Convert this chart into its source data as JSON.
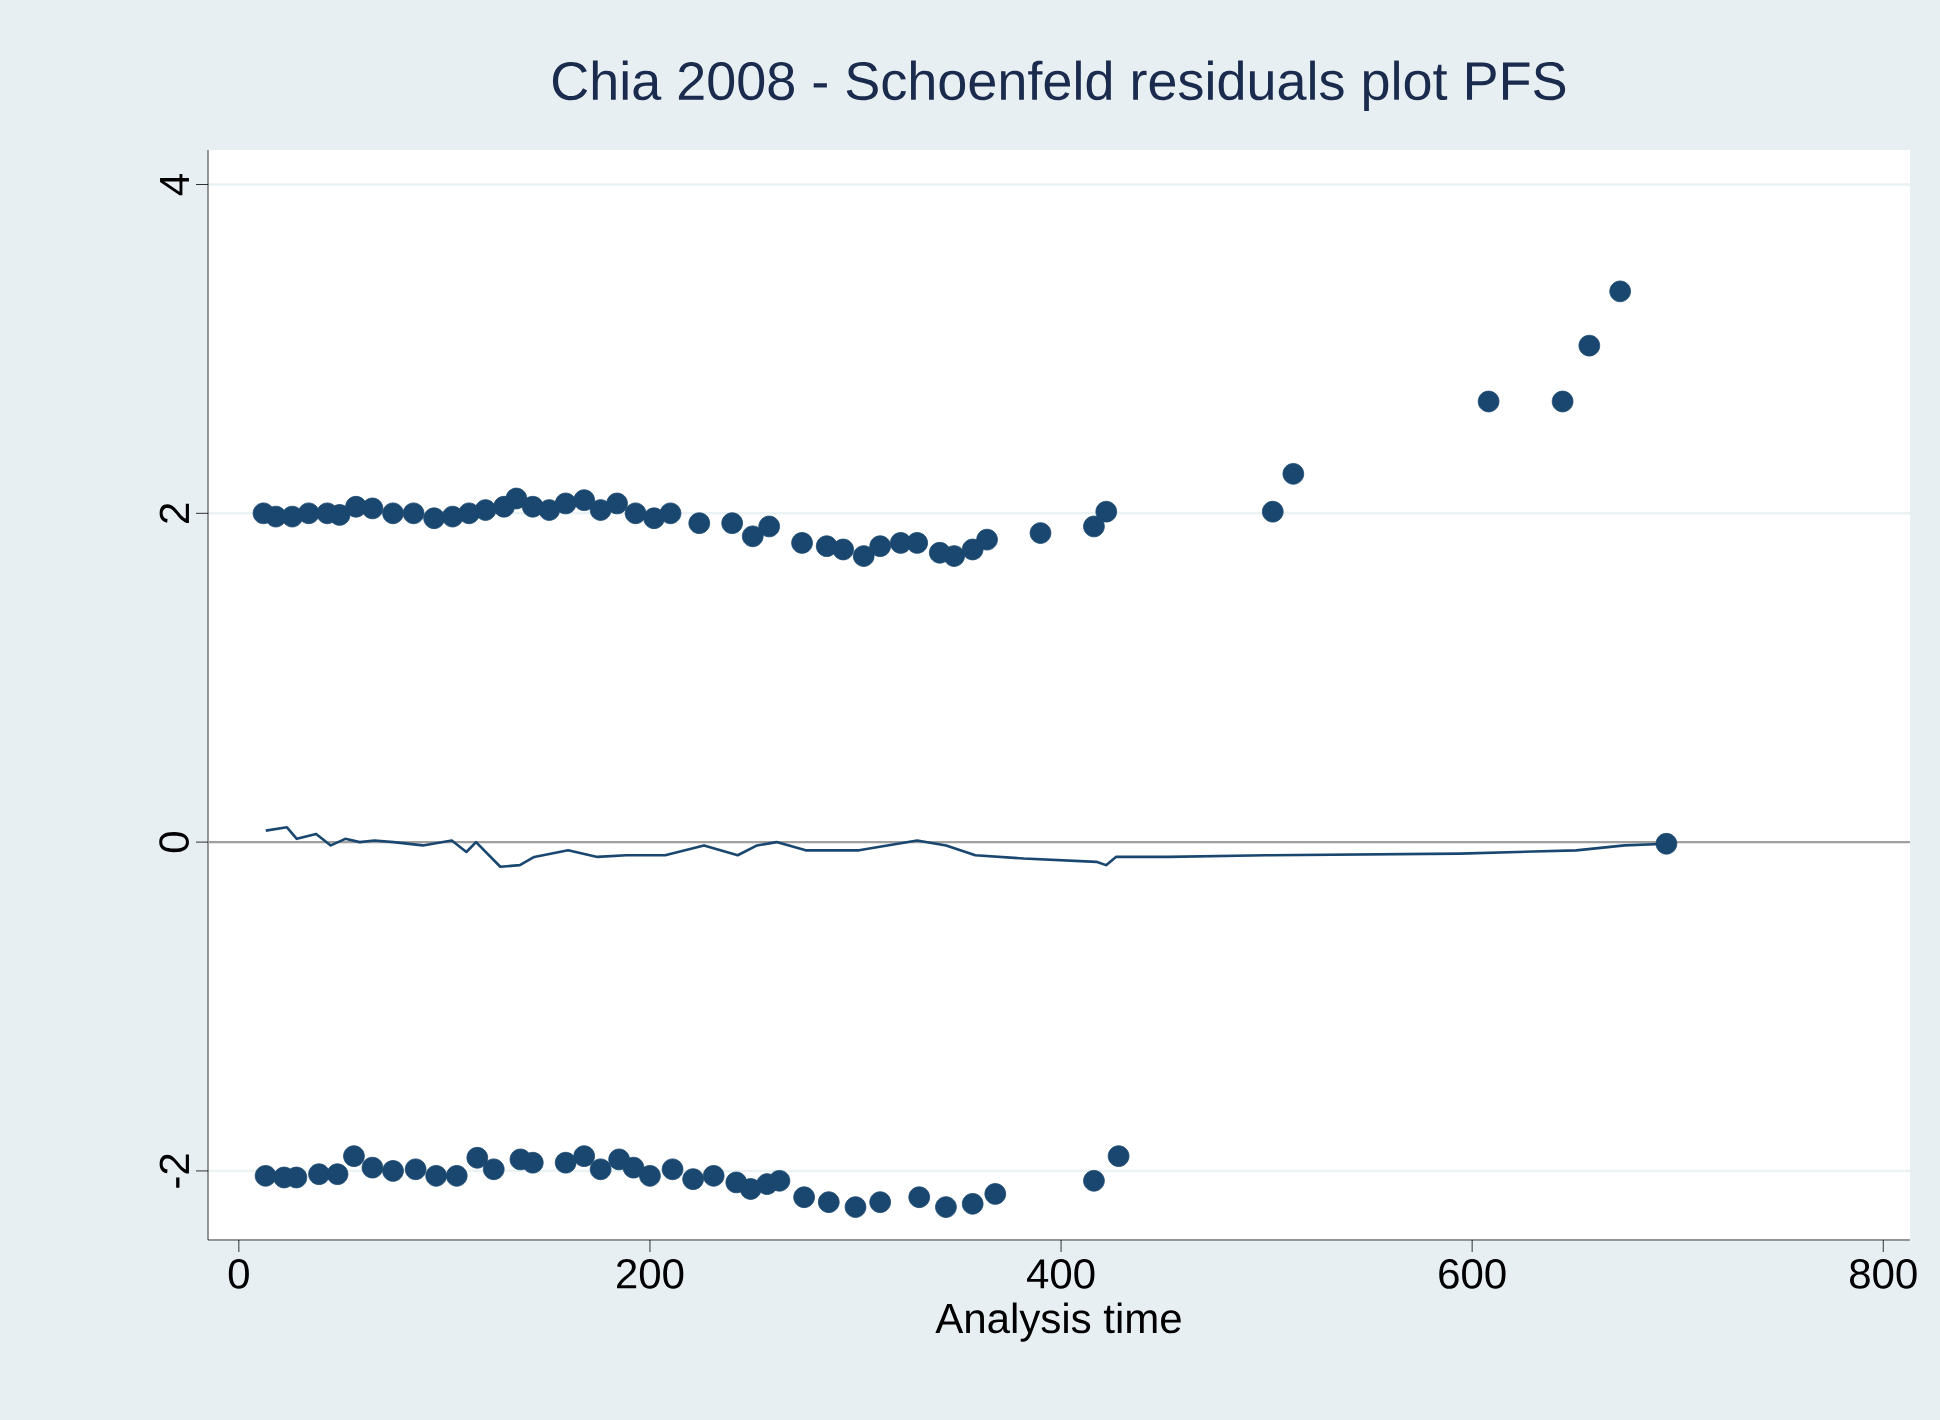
{
  "chart_data": {
    "type": "scatter",
    "title": "Chia 2008 - Schoenfeld residuals plot PFS",
    "xlabel": "Analysis time",
    "xlim": [
      -15,
      813
    ],
    "ylim": [
      -2.42,
      4.21
    ],
    "xticks": [
      0,
      200,
      400,
      600,
      800
    ],
    "yticks": [
      -2,
      0,
      2,
      4
    ],
    "grid": "y",
    "ref_lines": [
      {
        "axis": "y",
        "value": 0,
        "color": "#a0a0a0"
      }
    ],
    "series": [
      {
        "color": "#1a476f",
        "marker": "circle",
        "x": [
          12,
          18,
          26,
          34,
          43,
          49,
          57,
          65,
          75,
          85,
          95,
          104,
          112,
          120,
          129,
          135,
          143,
          151,
          159,
          168,
          176,
          184,
          193,
          202,
          210,
          224,
          240,
          250,
          258,
          274,
          286,
          294,
          304,
          312,
          322,
          330,
          341,
          348,
          357,
          364,
          390,
          416,
          422,
          503,
          513,
          608,
          644,
          657,
          672
        ],
        "values": [
          2.0,
          1.98,
          1.98,
          2.0,
          2.0,
          1.99,
          2.04,
          2.03,
          2.0,
          2.0,
          1.97,
          1.98,
          2.0,
          2.02,
          2.04,
          2.09,
          2.04,
          2.02,
          2.06,
          2.08,
          2.02,
          2.06,
          2.0,
          1.97,
          2.0,
          1.94,
          1.94,
          1.86,
          1.92,
          1.82,
          1.8,
          1.78,
          1.74,
          1.8,
          1.82,
          1.82,
          1.76,
          1.74,
          1.78,
          1.84,
          1.88,
          1.92,
          2.01,
          2.01,
          2.24,
          2.68,
          2.68,
          3.02,
          3.35
        ]
      },
      {
        "color": "#1a476f",
        "marker": "circle",
        "x": [
          13,
          22,
          28,
          39,
          48,
          56,
          65,
          75,
          86,
          96,
          106,
          116,
          124,
          137,
          143,
          159,
          168,
          176,
          185,
          192,
          200,
          211,
          221,
          231,
          242,
          249,
          257,
          263,
          275,
          287,
          300,
          312,
          331,
          344,
          357,
          368,
          416,
          428
        ],
        "values": [
          -2.03,
          -2.04,
          -2.04,
          -2.02,
          -2.02,
          -1.91,
          -1.98,
          -2.0,
          -1.99,
          -2.03,
          -2.03,
          -1.92,
          -1.99,
          -1.93,
          -1.95,
          -1.95,
          -1.91,
          -1.99,
          -1.93,
          -1.98,
          -2.03,
          -1.99,
          -2.05,
          -2.03,
          -2.07,
          -2.11,
          -2.08,
          -2.06,
          -2.16,
          -2.19,
          -2.22,
          -2.19,
          -2.16,
          -2.22,
          -2.2,
          -2.14,
          -2.06,
          -1.91
        ]
      },
      {
        "type": "line",
        "color": "#1a476f",
        "marker": "none",
        "x": [
          13.1,
          23.4,
          28.2,
          37.6,
          44.7,
          51.8,
          58.8,
          66.0,
          75.3,
          89.5,
          103.6,
          110.7,
          115.4,
          127.2,
          136.7,
          143.7,
          160.2,
          174.4,
          188.5,
          207.4,
          226.3,
          242.7,
          252.1,
          261.6,
          275.8,
          301.7,
          330.0,
          344.1,
          358.3,
          381.8,
          417.2,
          421.9,
          426.7,
          452.5,
          499.7,
          594.1,
          650.6,
          674.2,
          694.5
        ],
        "values": [
          0.07,
          0.09,
          0.02,
          0.05,
          -0.02,
          0.02,
          0.0,
          0.01,
          0.0,
          -0.02,
          0.01,
          -0.06,
          0.0,
          -0.15,
          -0.14,
          -0.09,
          -0.05,
          -0.09,
          -0.08,
          -0.08,
          -0.02,
          -0.08,
          -0.02,
          0.0,
          -0.05,
          -0.05,
          0.01,
          -0.02,
          -0.08,
          -0.1,
          -0.12,
          -0.14,
          -0.09,
          -0.09,
          -0.08,
          -0.07,
          -0.05,
          -0.02,
          -0.01
        ]
      },
      {
        "color": "#1a476f",
        "marker": "circle",
        "x": [
          694.5
        ],
        "values": [
          -0.01
        ]
      }
    ]
  }
}
